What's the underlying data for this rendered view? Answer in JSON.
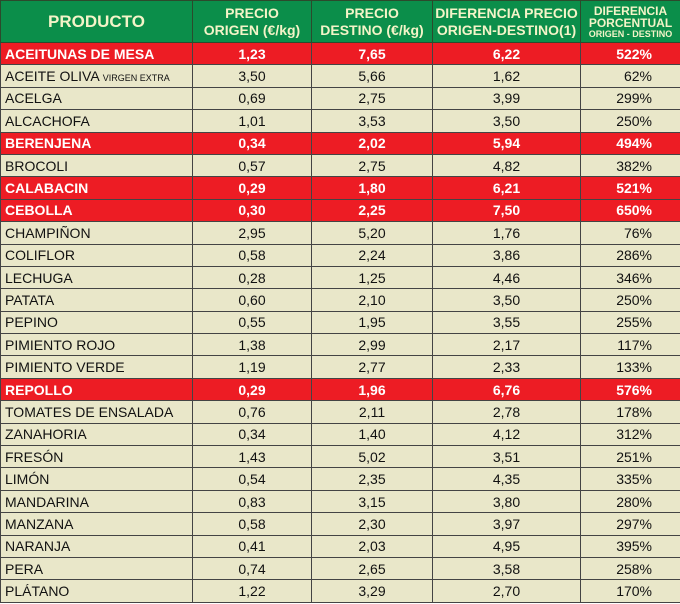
{
  "headers": {
    "producto": "PRODUCTO",
    "origen1": "PRECIO",
    "origen2": "ORIGEN (€/kg)",
    "destino1": "PRECIO",
    "destino2": "DESTINO (€/kg)",
    "dif1": "DIFERENCIA PRECIO",
    "dif2": "ORIGEN-DESTINO(1)",
    "pct1": "DIFERENCIA",
    "pct2": "PORCENTUAL",
    "pct3": "ORIGEN - DESTINO"
  },
  "colors": {
    "header": "#0b8e4a",
    "highlight": "#ed1c24",
    "row": "#e9e7c9"
  },
  "rows": [
    {
      "name": "ACEITUNAS DE MESA",
      "o": "1,23",
      "d": "7,65",
      "dif": "6,22",
      "pct": "522%",
      "hl": true
    },
    {
      "name": "ACEITE OLIVA",
      "sub": "VIRGEN EXTRA",
      "o": "3,50",
      "d": "5,66",
      "dif": "1,62",
      "pct": "62%"
    },
    {
      "name": "ACELGA",
      "o": "0,69",
      "d": "2,75",
      "dif": "3,99",
      "pct": "299%"
    },
    {
      "name": "ALCACHOFA",
      "o": "1,01",
      "d": "3,53",
      "dif": "3,50",
      "pct": "250%"
    },
    {
      "name": "BERENJENA",
      "o": "0,34",
      "d": "2,02",
      "dif": "5,94",
      "pct": "494%",
      "hl": true
    },
    {
      "name": "BROCOLI",
      "o": "0,57",
      "d": "2,75",
      "dif": "4,82",
      "pct": "382%"
    },
    {
      "name": "CALABACIN",
      "o": "0,29",
      "d": "1,80",
      "dif": "6,21",
      "pct": "521%",
      "hl": true
    },
    {
      "name": "CEBOLLA",
      "o": "0,30",
      "d": "2,25",
      "dif": "7,50",
      "pct": "650%",
      "hl": true
    },
    {
      "name": "CHAMPIÑON",
      "o": "2,95",
      "d": "5,20",
      "dif": "1,76",
      "pct": "76%"
    },
    {
      "name": "COLIFLOR",
      "o": "0,58",
      "d": "2,24",
      "dif": "3,86",
      "pct": "286%"
    },
    {
      "name": "LECHUGA",
      "o": "0,28",
      "d": "1,25",
      "dif": "4,46",
      "pct": "346%"
    },
    {
      "name": "PATATA",
      "o": "0,60",
      "d": "2,10",
      "dif": "3,50",
      "pct": "250%"
    },
    {
      "name": "PEPINO",
      "o": "0,55",
      "d": "1,95",
      "dif": "3,55",
      "pct": "255%"
    },
    {
      "name": "PIMIENTO ROJO",
      "o": "1,38",
      "d": "2,99",
      "dif": "2,17",
      "pct": "117%"
    },
    {
      "name": "PIMIENTO VERDE",
      "o": "1,19",
      "d": "2,77",
      "dif": "2,33",
      "pct": "133%"
    },
    {
      "name": "REPOLLO",
      "o": "0,29",
      "d": "1,96",
      "dif": "6,76",
      "pct": "576%",
      "hl": true
    },
    {
      "name": "TOMATES DE ENSALADA",
      "o": "0,76",
      "d": "2,11",
      "dif": "2,78",
      "pct": "178%"
    },
    {
      "name": "ZANAHORIA",
      "o": "0,34",
      "d": "1,40",
      "dif": "4,12",
      "pct": "312%"
    },
    {
      "name": "FRESÓN",
      "o": "1,43",
      "d": "5,02",
      "dif": "3,51",
      "pct": "251%"
    },
    {
      "name": "LIMÓN",
      "o": "0,54",
      "d": "2,35",
      "dif": "4,35",
      "pct": "335%"
    },
    {
      "name": "MANDARINA",
      "o": "0,83",
      "d": "3,15",
      "dif": "3,80",
      "pct": "280%"
    },
    {
      "name": "MANZANA",
      "o": "0,58",
      "d": "2,30",
      "dif": "3,97",
      "pct": "297%"
    },
    {
      "name": "NARANJA",
      "o": "0,41",
      "d": "2,03",
      "dif": "4,95",
      "pct": "395%"
    },
    {
      "name": "PERA",
      "o": "0,74",
      "d": "2,65",
      "dif": "3,58",
      "pct": "258%"
    },
    {
      "name": "PLÁTANO",
      "o": "1,22",
      "d": "3,29",
      "dif": "2,70",
      "pct": "170%"
    }
  ]
}
